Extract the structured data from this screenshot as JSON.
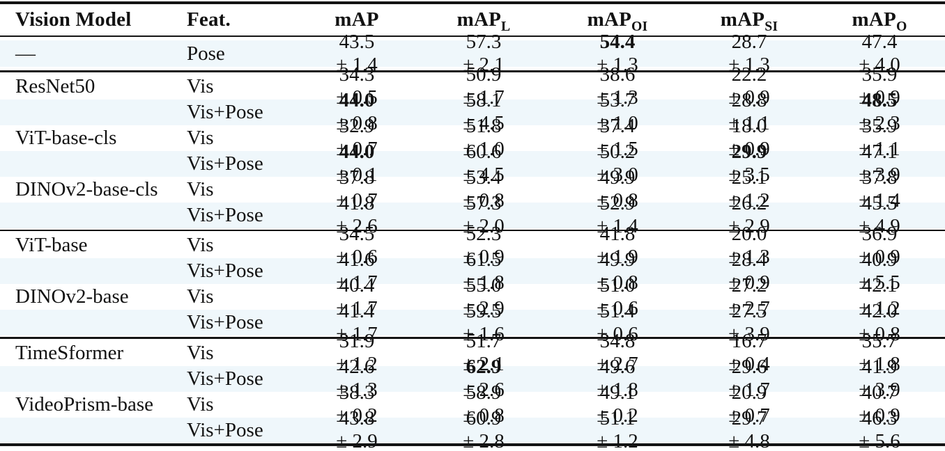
{
  "page": {
    "background": "#ffffff",
    "stripe_color": "#eff7fb",
    "rule_color": "#141414",
    "text_color": "#121212"
  },
  "table": {
    "plus_minus": "±",
    "header": {
      "model": "Vision Model",
      "feat": "Feat.",
      "metrics": [
        {
          "base": "mAP",
          "sub": ""
        },
        {
          "base": "mAP",
          "sub": "L"
        },
        {
          "base": "mAP",
          "sub": "OI"
        },
        {
          "base": "mAP",
          "sub": "SI"
        },
        {
          "base": "mAP",
          "sub": "O"
        }
      ]
    },
    "groups": [
      [
        {
          "model": "—",
          "feat": "Pose",
          "cells": [
            {
              "v": "43.5",
              "pm": "1.4",
              "bold": false
            },
            {
              "v": "57.3",
              "pm": "2.1",
              "bold": false
            },
            {
              "v": "54.4",
              "pm": "1.3",
              "bold": true
            },
            {
              "v": "28.7",
              "pm": "1.3",
              "bold": false
            },
            {
              "v": "47.4",
              "pm": "4.0",
              "bold": false
            }
          ]
        }
      ],
      [
        {
          "model": "ResNet50",
          "feat": "Vis",
          "cells": [
            {
              "v": "34.3",
              "pm": "0.5",
              "bold": false
            },
            {
              "v": "50.9",
              "pm": "1.7",
              "bold": false
            },
            {
              "v": "38.6",
              "pm": "1.3",
              "bold": false
            },
            {
              "v": "22.2",
              "pm": "0.9",
              "bold": false
            },
            {
              "v": "35.9",
              "pm": "0.9",
              "bold": false
            }
          ]
        },
        {
          "model": "",
          "feat": "Vis+Pose",
          "cells": [
            {
              "v": "44.0",
              "pm": "0.8",
              "bold": true
            },
            {
              "v": "58.1",
              "pm": "4.5",
              "bold": false
            },
            {
              "v": "53.7",
              "pm": "1.0",
              "bold": false
            },
            {
              "v": "28.8",
              "pm": "1.1",
              "bold": false
            },
            {
              "v": "48.5",
              "pm": "2.3",
              "bold": true
            }
          ]
        },
        {
          "model": "ViT-base-cls",
          "feat": "Vis",
          "cells": [
            {
              "v": "32.9",
              "pm": "0.7",
              "bold": false
            },
            {
              "v": "51.8",
              "pm": "1.0",
              "bold": false
            },
            {
              "v": "37.4",
              "pm": "1.5",
              "bold": false
            },
            {
              "v": "18.0",
              "pm": "0.9",
              "bold": false
            },
            {
              "v": "35.9",
              "pm": "1.1",
              "bold": false
            }
          ]
        },
        {
          "model": "",
          "feat": "Vis+Pose",
          "cells": [
            {
              "v": "44.0",
              "pm": "0.1",
              "bold": true
            },
            {
              "v": "60.6",
              "pm": "4.5",
              "bold": false
            },
            {
              "v": "50.2",
              "pm": "3.0",
              "bold": false
            },
            {
              "v": "29.9",
              "pm": "3.5",
              "bold": true
            },
            {
              "v": "47.1",
              "pm": "3.9",
              "bold": false
            }
          ]
        },
        {
          "model": "DINOv2-base-cls",
          "feat": "Vis",
          "cells": [
            {
              "v": "37.8",
              "pm": "0.7",
              "bold": false
            },
            {
              "v": "53.4",
              "pm": "0.8",
              "bold": false
            },
            {
              "v": "49.9",
              "pm": "0.8",
              "bold": false
            },
            {
              "v": "25.1",
              "pm": "1.2",
              "bold": false
            },
            {
              "v": "37.8",
              "pm": "1.4",
              "bold": false
            }
          ]
        },
        {
          "model": "",
          "feat": "Vis+Pose",
          "cells": [
            {
              "v": "41.8",
              "pm": "2.6",
              "bold": false
            },
            {
              "v": "57.3",
              "pm": "2.0",
              "bold": false
            },
            {
              "v": "52.9",
              "pm": "1.4",
              "bold": false
            },
            {
              "v": "26.2",
              "pm": "2.9",
              "bold": false
            },
            {
              "v": "45.5",
              "pm": "4.9",
              "bold": false
            }
          ]
        }
      ],
      [
        {
          "model": "ViT-base",
          "feat": "Vis",
          "cells": [
            {
              "v": "34.5",
              "pm": "0.6",
              "bold": false
            },
            {
              "v": "52.3",
              "pm": "0.9",
              "bold": false
            },
            {
              "v": "41.8",
              "pm": "1.9",
              "bold": false
            },
            {
              "v": "20.0",
              "pm": "1.3",
              "bold": false
            },
            {
              "v": "36.9",
              "pm": "0.9",
              "bold": false
            }
          ]
        },
        {
          "model": "",
          "feat": "Vis+Pose",
          "cells": [
            {
              "v": "41.6",
              "pm": "1.7",
              "bold": false
            },
            {
              "v": "61.5",
              "pm": "1.8",
              "bold": false
            },
            {
              "v": "49.9",
              "pm": "0.8",
              "bold": false
            },
            {
              "v": "28.4",
              "pm": "0.9",
              "bold": false
            },
            {
              "v": "40.9",
              "pm": "5.5",
              "bold": false
            }
          ]
        },
        {
          "model": "DINOv2-base",
          "feat": "Vis",
          "cells": [
            {
              "v": "40.4",
              "pm": "1.7",
              "bold": false
            },
            {
              "v": "55.0",
              "pm": "2.9",
              "bold": false
            },
            {
              "v": "51.0",
              "pm": "0.6",
              "bold": false
            },
            {
              "v": "27.2",
              "pm": "2.7",
              "bold": false
            },
            {
              "v": "42.1",
              "pm": "1.2",
              "bold": false
            }
          ]
        },
        {
          "model": "",
          "feat": "Vis+Pose",
          "cells": [
            {
              "v": "41.4",
              "pm": "1.7",
              "bold": false
            },
            {
              "v": "59.5",
              "pm": "1.6",
              "bold": false
            },
            {
              "v": "51.4",
              "pm": "0.6",
              "bold": false
            },
            {
              "v": "27.5",
              "pm": "3.9",
              "bold": false
            },
            {
              "v": "42.0",
              "pm": "0.8",
              "bold": false
            }
          ]
        }
      ],
      [
        {
          "model": "TimeSformer",
          "feat": "Vis",
          "cells": [
            {
              "v": "31.9",
              "pm": "1.2",
              "bold": false
            },
            {
              "v": "51.7",
              "pm": "2.1",
              "bold": false
            },
            {
              "v": "34.8",
              "pm": "2.7",
              "bold": false
            },
            {
              "v": "16.7",
              "pm": "0.4",
              "bold": false
            },
            {
              "v": "35.7",
              "pm": "1.8",
              "bold": false
            }
          ]
        },
        {
          "model": "",
          "feat": "Vis+Pose",
          "cells": [
            {
              "v": "42.6",
              "pm": "1.3",
              "bold": false
            },
            {
              "v": "62.9",
              "pm": "2.6",
              "bold": true
            },
            {
              "v": "49.6",
              "pm": "1.8",
              "bold": false
            },
            {
              "v": "29.6",
              "pm": "1.7",
              "bold": false
            },
            {
              "v": "41.9",
              "pm": "3.9",
              "bold": false
            }
          ]
        },
        {
          "model": "VideoPrism-base",
          "feat": "Vis",
          "cells": [
            {
              "v": "38.3",
              "pm": "0.2",
              "bold": false
            },
            {
              "v": "58.9",
              "pm": "0.8",
              "bold": false
            },
            {
              "v": "49.1",
              "pm": "0.2",
              "bold": false
            },
            {
              "v": "20.9",
              "pm": "0.7",
              "bold": false
            },
            {
              "v": "40.7",
              "pm": "0.9",
              "bold": false
            }
          ]
        },
        {
          "model": "",
          "feat": "Vis+Pose",
          "cells": [
            {
              "v": "43.8",
              "pm": "2.9",
              "bold": false
            },
            {
              "v": "60.9",
              "pm": "2.8",
              "bold": false
            },
            {
              "v": "51.1",
              "pm": "1.2",
              "bold": false
            },
            {
              "v": "29.7",
              "pm": "4.8",
              "bold": false
            },
            {
              "v": "46.3",
              "pm": "5.6",
              "bold": false
            }
          ]
        }
      ]
    ]
  }
}
